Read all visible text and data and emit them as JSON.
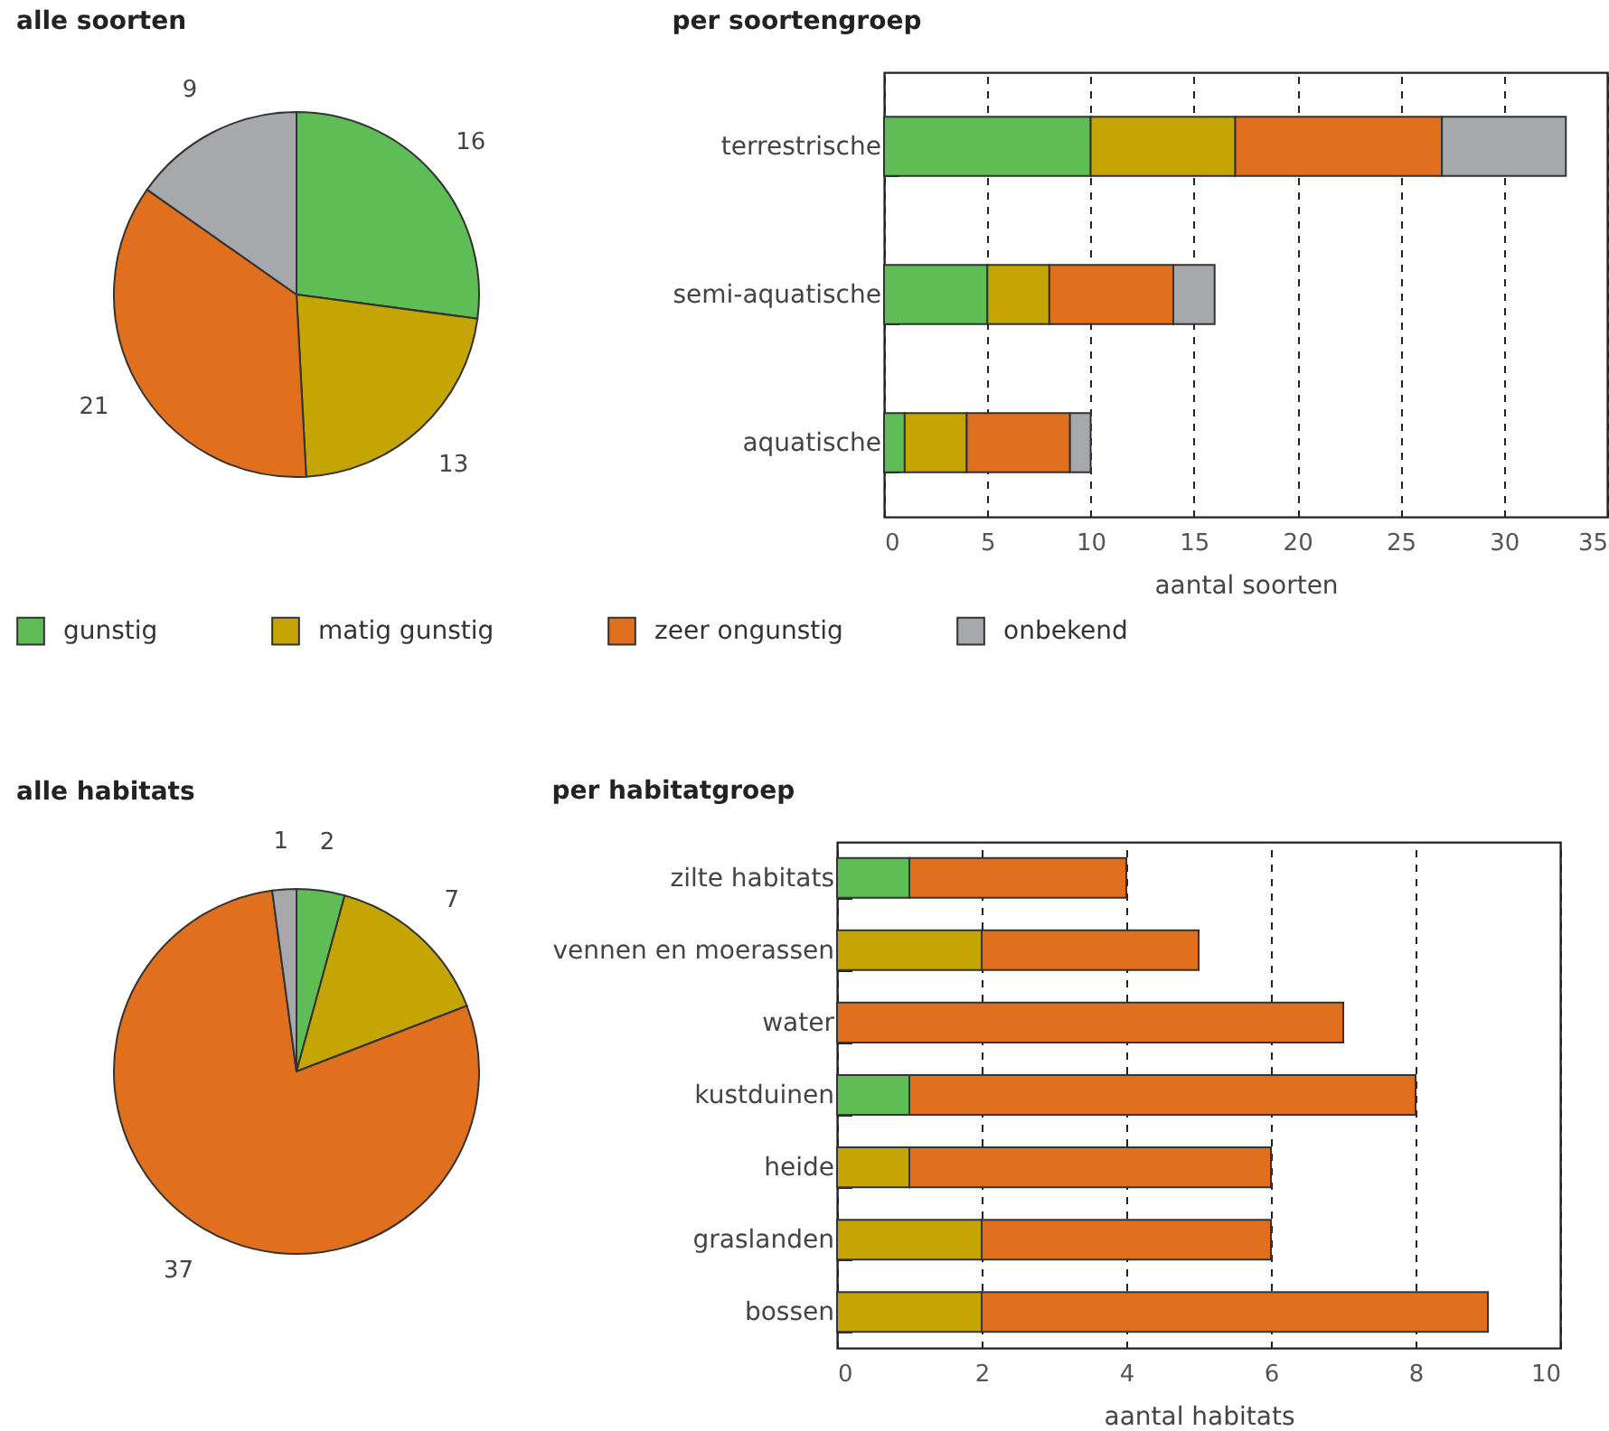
{
  "chart_data": [
    {
      "type": "pie",
      "title": "alle soorten",
      "categories": [
        "gunstig",
        "matig gunstig",
        "zeer ongunstig",
        "onbekend"
      ],
      "values": [
        16,
        13,
        21,
        9
      ],
      "colors": [
        "#5ebd55",
        "#c4a503",
        "#e06f1e",
        "#a7a8ab"
      ],
      "data_labels": true,
      "legend": "bottom"
    },
    {
      "type": "bar",
      "title": "per soortengroep",
      "orientation": "horizontal",
      "stacked": true,
      "categories": [
        "terrestrische",
        "semi-aquatische",
        "aquatische"
      ],
      "xlabel": "aantal soorten",
      "xlim": [
        0,
        35
      ],
      "xticks": [
        0,
        5,
        10,
        15,
        20,
        25,
        30,
        35
      ],
      "grid": "x",
      "series": [
        {
          "color": "#5ebd55",
          "values": [
            10,
            5,
            1
          ]
        },
        {
          "color": "#c4a503",
          "values": [
            7,
            3,
            3
          ]
        },
        {
          "color": "#e06f1e",
          "values": [
            10,
            6,
            5
          ]
        },
        {
          "color": "#a7a8ab",
          "values": [
            6,
            2,
            1
          ]
        }
      ]
    },
    {
      "type": "pie",
      "title": "alle habitats",
      "categories": [
        null,
        null,
        null,
        null
      ],
      "values": [
        2,
        7,
        37,
        1
      ],
      "colors": [
        "#5ebd55",
        "#c4a503",
        "#e06f1e",
        "#a7a8ab"
      ],
      "data_labels": true
    },
    {
      "type": "bar",
      "title": "per habitatgroep",
      "orientation": "horizontal",
      "stacked": true,
      "categories": [
        "zilte habitats",
        "vennen en moerassen",
        "water",
        "kustduinen",
        "heide",
        "graslanden",
        "bossen"
      ],
      "xlabel": "aantal habitats",
      "xlim": [
        0,
        10
      ],
      "xticks": [
        0,
        2,
        4,
        6,
        8,
        10
      ],
      "grid": "x",
      "series": [
        {
          "color": "#5ebd55",
          "values": [
            1,
            null,
            null,
            1,
            null,
            null,
            null
          ]
        },
        {
          "color": "#c4a503",
          "values": [
            null,
            2,
            null,
            null,
            1,
            2,
            2
          ]
        },
        {
          "color": "#e06f1e",
          "values": [
            3,
            3,
            7,
            7,
            5,
            4,
            7
          ]
        }
      ]
    }
  ]
}
